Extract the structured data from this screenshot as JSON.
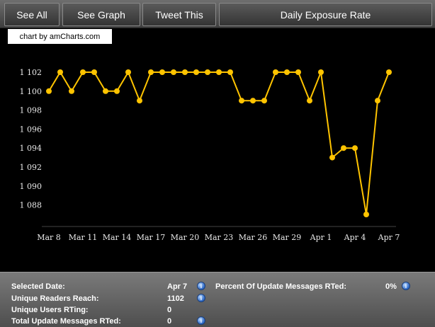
{
  "tabs": {
    "see_all": "See All",
    "see_graph": "See Graph",
    "tweet_this": "Tweet This",
    "daily_exposure": "Daily Exposure Rate"
  },
  "chart": {
    "credit": "chart by amCharts.com"
  },
  "chart_data": {
    "type": "line",
    "x": [
      "Mar 8",
      "Mar 9",
      "Mar 10",
      "Mar 11",
      "Mar 12",
      "Mar 13",
      "Mar 14",
      "Mar 15",
      "Mar 16",
      "Mar 17",
      "Mar 18",
      "Mar 19",
      "Mar 20",
      "Mar 21",
      "Mar 22",
      "Mar 23",
      "Mar 24",
      "Mar 25",
      "Mar 26",
      "Mar 27",
      "Mar 28",
      "Mar 29",
      "Mar 30",
      "Mar 31",
      "Apr 1",
      "Apr 2",
      "Apr 3",
      "Apr 4",
      "Apr 5",
      "Apr 6",
      "Apr 7"
    ],
    "values": [
      1100,
      1102,
      1100,
      1102,
      1102,
      1100,
      1100,
      1102,
      1099,
      1102,
      1102,
      1102,
      1102,
      1102,
      1102,
      1102,
      1102,
      1099,
      1099,
      1099,
      1102,
      1102,
      1102,
      1099,
      1102,
      1093,
      1094,
      1094,
      1087,
      1099,
      1102
    ],
    "x_tick_labels": [
      "Mar 8",
      "Mar 11",
      "Mar 14",
      "Mar 17",
      "Mar 20",
      "Mar 23",
      "Mar 26",
      "Mar 29",
      "Apr 1",
      "Apr 4",
      "Apr 7"
    ],
    "y_tick_labels": [
      "1 102",
      "1 100",
      "1 098",
      "1 096",
      "1 094",
      "1 092",
      "1 090",
      "1 088"
    ],
    "y_ticks": [
      1102,
      1100,
      1098,
      1096,
      1094,
      1092,
      1090,
      1088
    ],
    "ylim": [
      1086,
      1102
    ],
    "line_color": "#ffc400",
    "grid": false
  },
  "stats": {
    "selected_date_label": "Selected Date:",
    "selected_date_value": "Apr 7",
    "unique_readers_label": "Unique Readers Reach:",
    "unique_readers_value": "1102",
    "unique_users_label": "Unique Users RTing:",
    "unique_users_value": "0",
    "total_update_label": "Total Update Messages RTed:",
    "total_update_value": "0",
    "percent_label": "Percent Of Update Messages RTed:",
    "percent_value": "0%"
  },
  "icons": {
    "info": "info-icon"
  }
}
